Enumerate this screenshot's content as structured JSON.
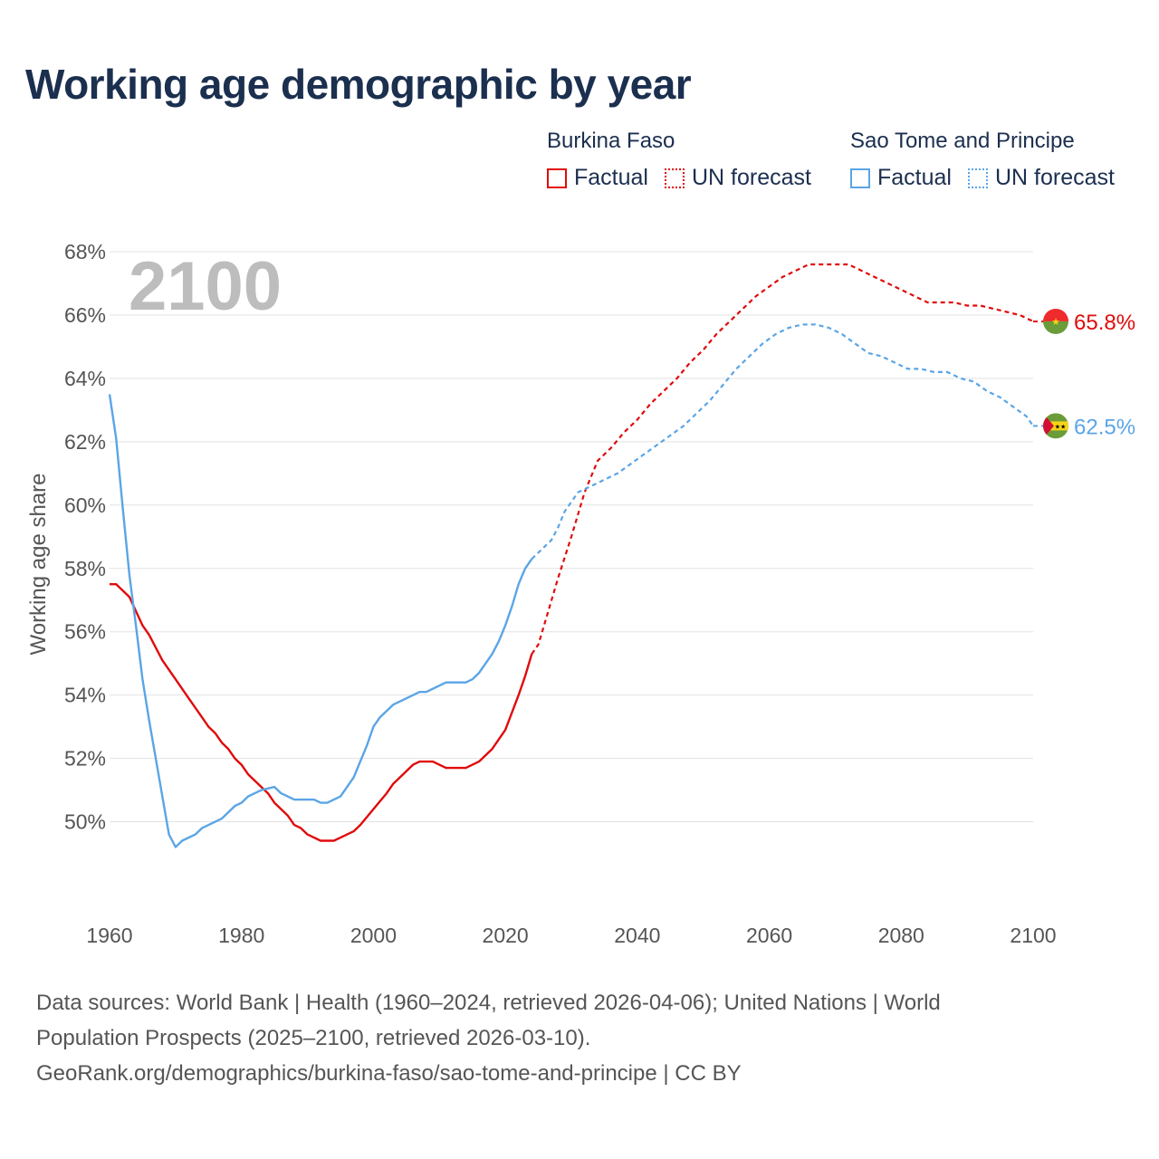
{
  "title": "Working age demographic by year",
  "legend": {
    "groups": [
      {
        "country": "Burkina Faso",
        "color": "#e00b0b",
        "factual_label": "Factual",
        "forecast_label": "UN forecast"
      },
      {
        "country": "Sao Tome and Principe",
        "color": "#5aa5e6",
        "factual_label": "Factual",
        "forecast_label": "UN forecast"
      }
    ]
  },
  "year_badge": "2100",
  "footer": {
    "line1": "Data sources: World Bank | Health (1960–2024, retrieved 2026-04-06); United Nations | World",
    "line2": "Population Prospects (2025–2100, retrieved 2026-03-10).",
    "line3": "GeoRank.org/demographics/burkina-faso/sao-tome-and-principe | CC BY"
  },
  "chart_data": {
    "type": "line",
    "title": "Working age demographic by year",
    "xlabel": "",
    "ylabel": "Working age share",
    "xlim": [
      1960,
      2100
    ],
    "ylim": [
      47.5,
      68
    ],
    "x_ticks": [
      1960,
      1980,
      2000,
      2020,
      2040,
      2060,
      2080,
      2100
    ],
    "y_ticks": [
      50,
      52,
      54,
      56,
      58,
      60,
      62,
      64,
      66,
      68
    ],
    "y_tick_labels": [
      "50%",
      "52%",
      "54%",
      "56%",
      "58%",
      "60%",
      "62%",
      "64%",
      "66%",
      "68%"
    ],
    "x_tick_labels": [
      "1960",
      "1980",
      "2000",
      "2020",
      "2040",
      "2060",
      "2080",
      "2100"
    ],
    "grid": true,
    "series": [
      {
        "name": "Burkina Faso",
        "color": "#e00b0b",
        "end_label": "65.8%",
        "factual": [
          [
            1960,
            57.5
          ],
          [
            1961,
            57.5
          ],
          [
            1963,
            57.1
          ],
          [
            1965,
            56.2
          ],
          [
            1966,
            55.9
          ],
          [
            1968,
            55.1
          ],
          [
            1970,
            54.5
          ],
          [
            1972,
            53.9
          ],
          [
            1974,
            53.3
          ],
          [
            1975,
            53.0
          ],
          [
            1976,
            52.8
          ],
          [
            1977,
            52.5
          ],
          [
            1978,
            52.3
          ],
          [
            1979,
            52.0
          ],
          [
            1980,
            51.8
          ],
          [
            1981,
            51.5
          ],
          [
            1982,
            51.3
          ],
          [
            1984,
            50.9
          ],
          [
            1985,
            50.6
          ],
          [
            1987,
            50.2
          ],
          [
            1988,
            49.9
          ],
          [
            1989,
            49.8
          ],
          [
            1990,
            49.6
          ],
          [
            1992,
            49.4
          ],
          [
            1994,
            49.4
          ],
          [
            1996,
            49.6
          ],
          [
            1997,
            49.7
          ],
          [
            1998,
            49.9
          ],
          [
            2000,
            50.4
          ],
          [
            2002,
            50.9
          ],
          [
            2003,
            51.2
          ],
          [
            2004,
            51.4
          ],
          [
            2006,
            51.8
          ],
          [
            2007,
            51.9
          ],
          [
            2009,
            51.9
          ],
          [
            2011,
            51.7
          ],
          [
            2014,
            51.7
          ],
          [
            2016,
            51.9
          ],
          [
            2018,
            52.3
          ],
          [
            2020,
            52.9
          ],
          [
            2022,
            54.0
          ],
          [
            2023,
            54.6
          ],
          [
            2024,
            55.3
          ]
        ],
        "forecast": [
          [
            2024,
            55.3
          ],
          [
            2025,
            55.6
          ],
          [
            2026,
            56.3
          ],
          [
            2028,
            57.7
          ],
          [
            2030,
            59.0
          ],
          [
            2032,
            60.4
          ],
          [
            2034,
            61.4
          ],
          [
            2036,
            61.8
          ],
          [
            2038,
            62.3
          ],
          [
            2040,
            62.7
          ],
          [
            2042,
            63.2
          ],
          [
            2044,
            63.6
          ],
          [
            2046,
            64.0
          ],
          [
            2048,
            64.5
          ],
          [
            2050,
            64.9
          ],
          [
            2052,
            65.4
          ],
          [
            2054,
            65.8
          ],
          [
            2056,
            66.2
          ],
          [
            2058,
            66.6
          ],
          [
            2060,
            66.9
          ],
          [
            2062,
            67.2
          ],
          [
            2064,
            67.4
          ],
          [
            2066,
            67.6
          ],
          [
            2068,
            67.6
          ],
          [
            2072,
            67.6
          ],
          [
            2074,
            67.4
          ],
          [
            2076,
            67.2
          ],
          [
            2078,
            67.0
          ],
          [
            2080,
            66.8
          ],
          [
            2082,
            66.6
          ],
          [
            2084,
            66.4
          ],
          [
            2086,
            66.4
          ],
          [
            2088,
            66.4
          ],
          [
            2090,
            66.3
          ],
          [
            2092,
            66.3
          ],
          [
            2094,
            66.2
          ],
          [
            2096,
            66.1
          ],
          [
            2098,
            66.0
          ],
          [
            2100,
            65.8
          ]
        ]
      },
      {
        "name": "Sao Tome and Principe",
        "color": "#5aa5e6",
        "end_label": "62.5%",
        "factual": [
          [
            1960,
            63.5
          ],
          [
            1961,
            62.1
          ],
          [
            1962,
            59.9
          ],
          [
            1963,
            57.8
          ],
          [
            1964,
            56.2
          ],
          [
            1965,
            54.5
          ],
          [
            1966,
            53.2
          ],
          [
            1967,
            52.0
          ],
          [
            1968,
            50.8
          ],
          [
            1969,
            49.6
          ],
          [
            1970,
            49.2
          ],
          [
            1971,
            49.4
          ],
          [
            1973,
            49.6
          ],
          [
            1974,
            49.8
          ],
          [
            1976,
            50.0
          ],
          [
            1977,
            50.1
          ],
          [
            1978,
            50.3
          ],
          [
            1979,
            50.5
          ],
          [
            1980,
            50.6
          ],
          [
            1981,
            50.8
          ],
          [
            1983,
            51.0
          ],
          [
            1985,
            51.1
          ],
          [
            1986,
            50.9
          ],
          [
            1988,
            50.7
          ],
          [
            1991,
            50.7
          ],
          [
            1992,
            50.6
          ],
          [
            1993,
            50.6
          ],
          [
            1995,
            50.8
          ],
          [
            1997,
            51.4
          ],
          [
            1999,
            52.4
          ],
          [
            2000,
            53.0
          ],
          [
            2001,
            53.3
          ],
          [
            2003,
            53.7
          ],
          [
            2005,
            53.9
          ],
          [
            2007,
            54.1
          ],
          [
            2008,
            54.1
          ],
          [
            2011,
            54.4
          ],
          [
            2014,
            54.4
          ],
          [
            2015,
            54.5
          ],
          [
            2016,
            54.7
          ],
          [
            2018,
            55.3
          ],
          [
            2019,
            55.7
          ],
          [
            2020,
            56.2
          ],
          [
            2021,
            56.8
          ],
          [
            2022,
            57.5
          ],
          [
            2023,
            58.0
          ],
          [
            2024,
            58.3
          ]
        ],
        "forecast": [
          [
            2024,
            58.3
          ],
          [
            2026,
            58.7
          ],
          [
            2027,
            58.9
          ],
          [
            2028,
            59.3
          ],
          [
            2029,
            59.8
          ],
          [
            2030,
            60.1
          ],
          [
            2031,
            60.4
          ],
          [
            2033,
            60.6
          ],
          [
            2035,
            60.8
          ],
          [
            2037,
            61.0
          ],
          [
            2039,
            61.3
          ],
          [
            2041,
            61.6
          ],
          [
            2043,
            61.9
          ],
          [
            2045,
            62.2
          ],
          [
            2047,
            62.5
          ],
          [
            2049,
            62.9
          ],
          [
            2051,
            63.3
          ],
          [
            2053,
            63.8
          ],
          [
            2055,
            64.3
          ],
          [
            2057,
            64.7
          ],
          [
            2059,
            65.1
          ],
          [
            2061,
            65.4
          ],
          [
            2063,
            65.6
          ],
          [
            2065,
            65.7
          ],
          [
            2067,
            65.7
          ],
          [
            2069,
            65.6
          ],
          [
            2071,
            65.4
          ],
          [
            2073,
            65.1
          ],
          [
            2075,
            64.8
          ],
          [
            2077,
            64.7
          ],
          [
            2079,
            64.5
          ],
          [
            2081,
            64.3
          ],
          [
            2083,
            64.3
          ],
          [
            2085,
            64.2
          ],
          [
            2087,
            64.2
          ],
          [
            2089,
            64.0
          ],
          [
            2091,
            63.9
          ],
          [
            2093,
            63.6
          ],
          [
            2095,
            63.4
          ],
          [
            2097,
            63.1
          ],
          [
            2099,
            62.8
          ],
          [
            2100,
            62.5
          ]
        ]
      }
    ]
  }
}
